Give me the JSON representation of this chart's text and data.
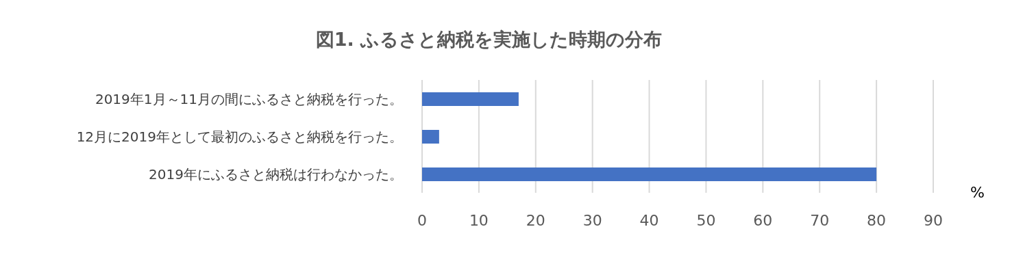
{
  "chart_data": {
    "type": "bar",
    "orientation": "horizontal",
    "title": "図1. ふるさと納税を実施した時期の分布",
    "xlabel": "%",
    "categories": [
      "2019年1月～11月の間にふるさと納税を行った。",
      "12月に2019年として最初のふるさと納税を行った。",
      "2019年にふるさと納税は行わなかった。"
    ],
    "values": [
      17,
      3,
      80
    ],
    "color": "#4472c4",
    "xlim": [
      0,
      90
    ],
    "xticks": [
      0,
      10,
      20,
      30,
      40,
      50,
      60,
      70,
      80,
      90
    ],
    "grid": "x",
    "legend": false
  }
}
